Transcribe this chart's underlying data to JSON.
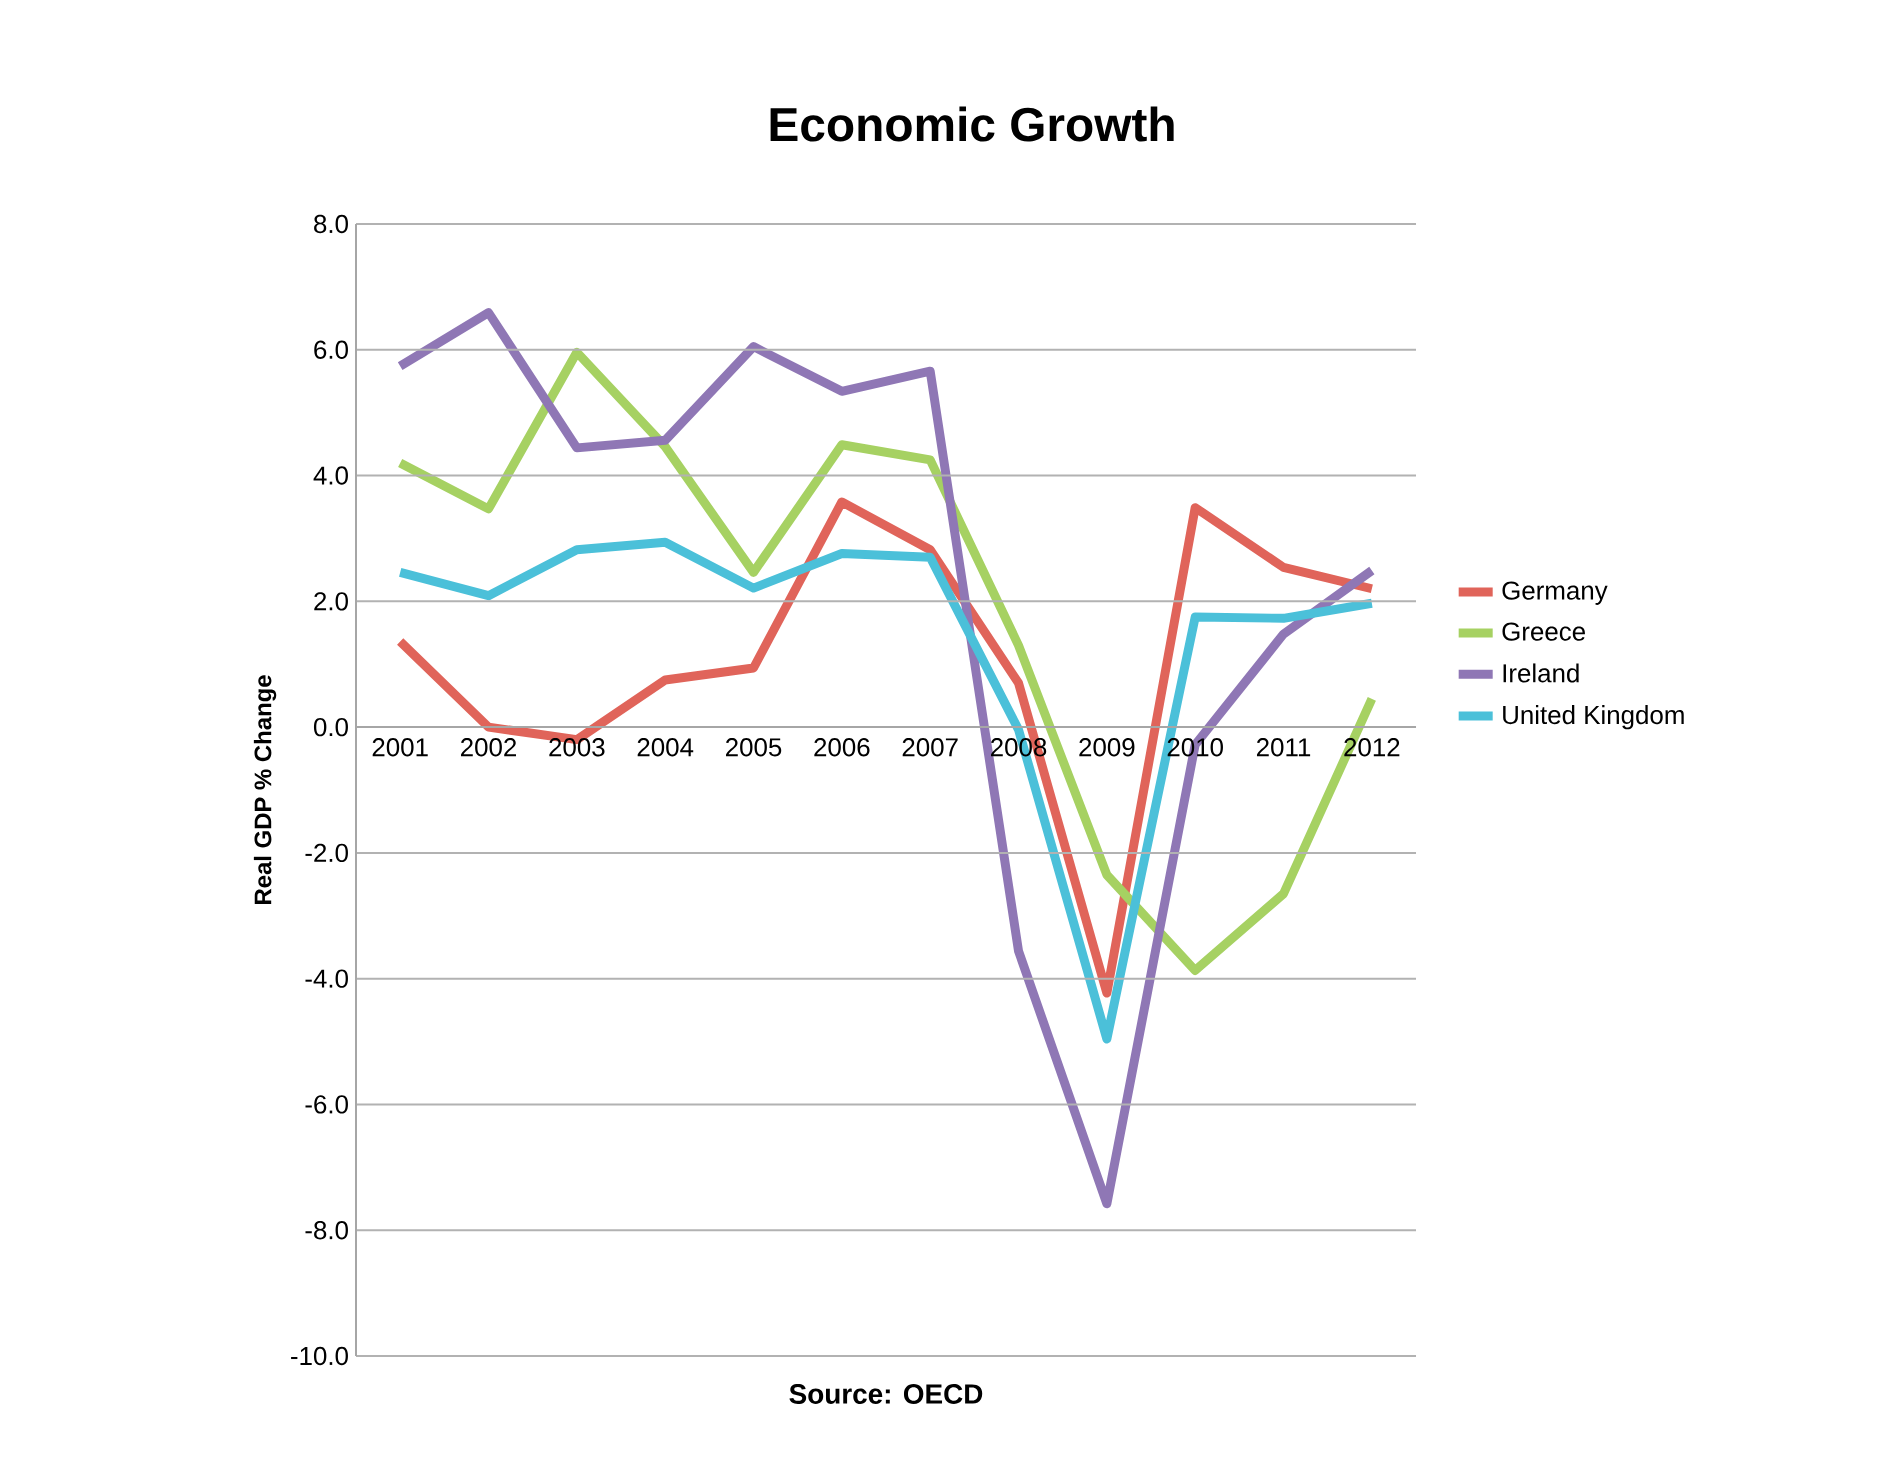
{
  "chart_data": {
    "type": "line",
    "title": "Economic Growth",
    "ylabel": "Real GDP % Change",
    "categories": [
      "2001",
      "2002",
      "2003",
      "2004",
      "2005",
      "2006",
      "2007",
      "2008",
      "2009",
      "2010",
      "2011",
      "2012"
    ],
    "series": [
      {
        "name": "Germany",
        "color": "#e0645a",
        "values": [
          1.36,
          0.0,
          -0.2,
          0.75,
          0.94,
          3.58,
          2.82,
          0.7,
          -4.23,
          3.49,
          2.54,
          2.2
        ]
      },
      {
        "name": "Greece",
        "color": "#a6d162",
        "values": [
          4.2,
          3.47,
          5.96,
          4.46,
          2.46,
          4.49,
          4.25,
          1.3,
          -2.35,
          -3.87,
          -2.65,
          0.45
        ]
      },
      {
        "name": "Ireland",
        "color": "#8f77b5",
        "values": [
          5.74,
          6.59,
          4.44,
          4.56,
          6.05,
          5.34,
          5.66,
          -3.56,
          -7.58,
          -0.28,
          1.48,
          2.49
        ]
      },
      {
        "name": "United Kingdom",
        "color": "#4bc0d9",
        "values": [
          2.46,
          2.09,
          2.82,
          2.94,
          2.21,
          2.76,
          2.7,
          -0.04,
          -4.96,
          1.75,
          1.73,
          1.97
        ]
      }
    ],
    "ylim": [
      -10,
      8
    ],
    "yticks": [
      {
        "value": -10,
        "label": "-10.0"
      },
      {
        "value": -8,
        "label": "-8.0"
      },
      {
        "value": -6,
        "label": "-6.0"
      },
      {
        "value": -4,
        "label": "-4.0"
      },
      {
        "value": -2,
        "label": "-2.0"
      },
      {
        "value": 0,
        "label": "0.0"
      },
      {
        "value": 2,
        "label": "2.0"
      },
      {
        "value": 4,
        "label": "4.0"
      },
      {
        "value": 6,
        "label": "6.0"
      },
      {
        "value": 8,
        "label": "8.0"
      }
    ],
    "grid": "y",
    "legend": "right",
    "marker": "none",
    "line_style": "solid",
    "annotations": [
      "Source: OECD"
    ]
  }
}
